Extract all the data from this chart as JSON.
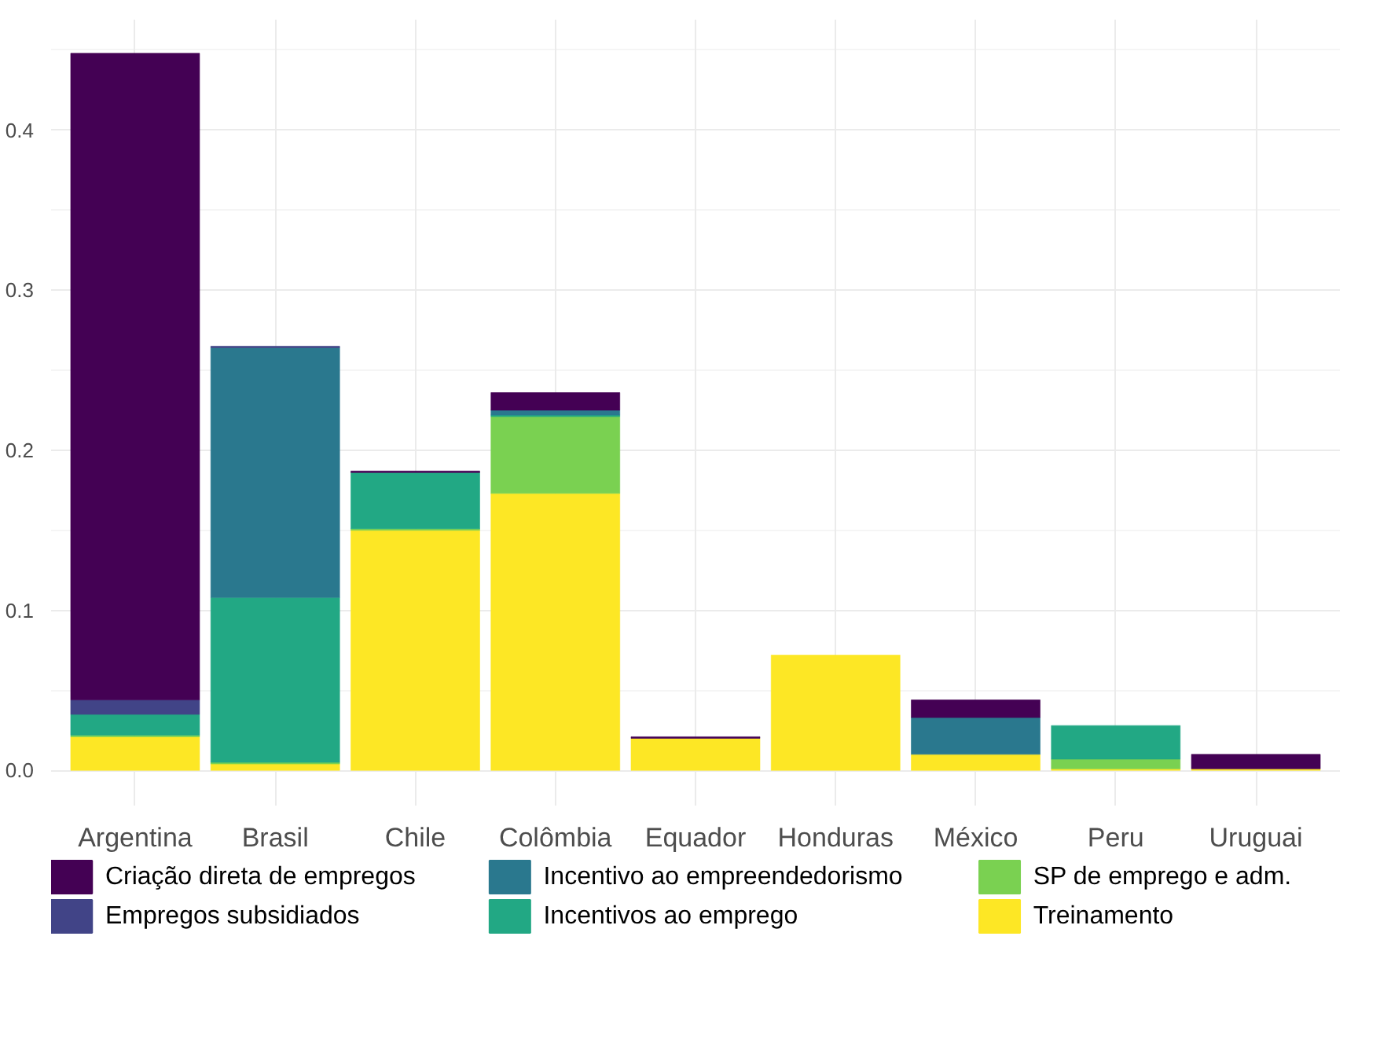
{
  "chart_data": {
    "type": "bar",
    "stacked": true,
    "categories": [
      "Argentina",
      "Brasil",
      "Chile",
      "Colômbia",
      "Equador",
      "Honduras",
      "México",
      "Peru",
      "Uruguai"
    ],
    "series": [
      {
        "name": "Treinamento",
        "color": "#fde725",
        "values": [
          0.021,
          0.004,
          0.15,
          0.173,
          0.02,
          0.072,
          0.01,
          0.001,
          0.001
        ]
      },
      {
        "name": "SP de emprego e adm.",
        "color": "#7ad151",
        "values": [
          0.001,
          0.001,
          0.001,
          0.048,
          null,
          null,
          null,
          0.006,
          null
        ]
      },
      {
        "name": "Incentivos ao emprego",
        "color": "#22a884",
        "values": [
          0.013,
          0.103,
          0.035,
          0.001,
          null,
          null,
          null,
          0.021,
          null
        ]
      },
      {
        "name": "Incentivo ao empreendedorismo",
        "color": "#2a788e",
        "values": [
          null,
          0.156,
          null,
          0.003,
          null,
          null,
          0.023,
          null,
          null
        ]
      },
      {
        "name": "Empregos subsidiados",
        "color": "#414487",
        "values": [
          0.009,
          0.001,
          null,
          null,
          null,
          null,
          null,
          null,
          null
        ]
      },
      {
        "name": "Criação direta de empregos",
        "color": "#440154",
        "values": [
          0.404,
          null,
          0.001,
          0.011,
          0.001,
          null,
          0.011,
          null,
          0.009
        ]
      }
    ],
    "ylim": [
      -0.022,
      0.469
    ],
    "yticks": [
      {
        "value": 0,
        "label": "0.0"
      },
      0.1,
      0.2,
      0.3,
      0.4
    ],
    "grid": true,
    "legend": "bottom"
  }
}
